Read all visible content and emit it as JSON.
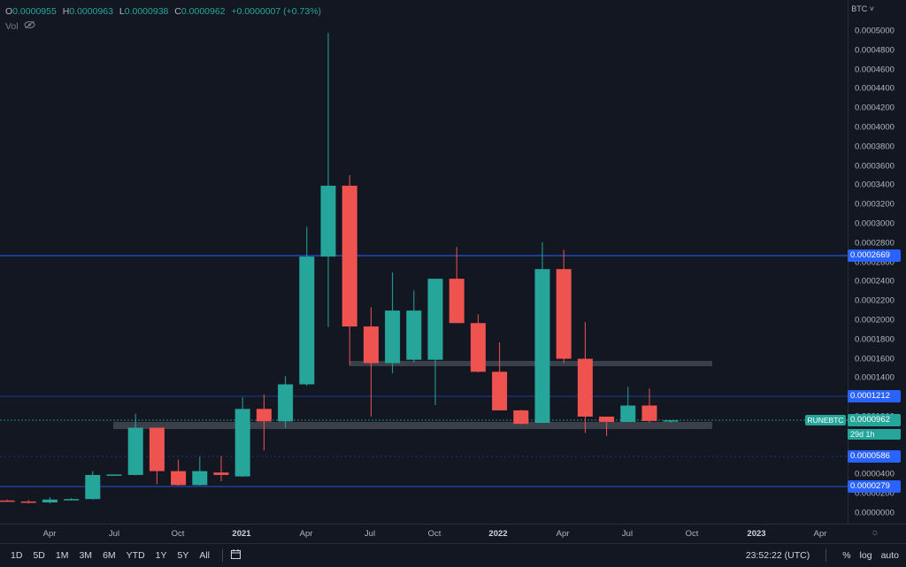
{
  "legend": {
    "o_label": "O",
    "o_value": "0.0000955",
    "h_label": "H",
    "h_value": "0.0000963",
    "l_label": "L",
    "l_value": "0.0000938",
    "c_label": "C",
    "c_value": "0.0000962",
    "change": "+0.0000007 (+0.73%)",
    "vol_label": "Vol"
  },
  "currency": "BTC",
  "y_ticks": [
    "0.0005000",
    "0.0004800",
    "0.0004600",
    "0.0004400",
    "0.0004200",
    "0.0004000",
    "0.0003800",
    "0.0003600",
    "0.0003400",
    "0.0003200",
    "0.0003000",
    "0.0002800",
    "0.0002600",
    "0.0002400",
    "0.0002200",
    "0.0002000",
    "0.0001800",
    "0.0001600",
    "0.0001400",
    "0.0001200",
    "0.0001000",
    "0.0000800",
    "0.0000600",
    "0.0000400",
    "0.0000200",
    "0.0000000"
  ],
  "x_ticks": [
    {
      "label": "Apr",
      "major": false
    },
    {
      "label": "Jul",
      "major": false
    },
    {
      "label": "Oct",
      "major": false
    },
    {
      "label": "2021",
      "major": true
    },
    {
      "label": "Apr",
      "major": false
    },
    {
      "label": "Jul",
      "major": false
    },
    {
      "label": "Oct",
      "major": false
    },
    {
      "label": "2022",
      "major": true
    },
    {
      "label": "Apr",
      "major": false
    },
    {
      "label": "Jul",
      "major": false
    },
    {
      "label": "Oct",
      "major": false
    },
    {
      "label": "2023",
      "major": true
    },
    {
      "label": "Apr",
      "major": false
    }
  ],
  "price_tags": {
    "level1": "0.0002669",
    "level2": "0.0001212",
    "current": "0.0000962",
    "level3": "0.0000586",
    "level4": "0.0000279"
  },
  "symbol": "RUNEBTC",
  "countdown": "29d 1h",
  "toolbar": {
    "timeframes": [
      "1D",
      "5D",
      "1M",
      "3M",
      "6M",
      "YTD",
      "1Y",
      "5Y",
      "All"
    ],
    "clock": "23:52:22 (UTC)",
    "percent": "%",
    "log": "log",
    "auto": "auto"
  },
  "colors": {
    "up": "#26a69a",
    "down": "#ef5350",
    "background": "#131722",
    "hline": "#2962ff"
  },
  "chart_data": {
    "type": "candlestick",
    "symbol": "RUNEBTC",
    "interval": "1M",
    "ylim": [
      0,
      0.0005
    ],
    "candles": [
      {
        "o": 1.3e-05,
        "h": 1.4e-05,
        "l": 1.2e-05,
        "c": 1.2e-05
      },
      {
        "o": 1.2e-05,
        "h": 1.35e-05,
        "l": 1e-05,
        "c": 1.1e-05
      },
      {
        "o": 1.1e-05,
        "h": 1.65e-05,
        "l": 1e-05,
        "c": 1.4e-05
      },
      {
        "o": 1.4e-05,
        "h": 1.55e-05,
        "l": 1.3e-05,
        "c": 1.45e-05
      },
      {
        "o": 1.45e-05,
        "h": 4.35e-05,
        "l": 1.4e-05,
        "c": 3.95e-05
      },
      {
        "o": 3.95e-05,
        "h": 4e-05,
        "l": 3.85e-05,
        "c": 4e-05
      },
      {
        "o": 3.95e-05,
        "h": 0.000103,
        "l": 3.9e-05,
        "c": 8.85e-05
      },
      {
        "o": 8.85e-05,
        "h": 8.8e-05,
        "l": 3e-05,
        "c": 4.35e-05
      },
      {
        "o": 4.35e-05,
        "h": 5.55e-05,
        "l": 2.85e-05,
        "c": 2.9e-05
      },
      {
        "o": 2.9e-05,
        "h": 5.85e-05,
        "l": 2.85e-05,
        "c": 4.35e-05
      },
      {
        "o": 4.2e-05,
        "h": 5.9e-05,
        "l": 3.3e-05,
        "c": 3.95e-05
      },
      {
        "o": 3.8e-05,
        "h": 0.00012,
        "l": 3.75e-05,
        "c": 0.000108
      },
      {
        "o": 0.000108,
        "h": 0.000123,
        "l": 6.5e-05,
        "c": 9.5e-05
      },
      {
        "o": 9.5e-05,
        "h": 0.000142,
        "l": 8.8e-05,
        "c": 0.0001335
      },
      {
        "o": 0.0001335,
        "h": 0.000297,
        "l": 0.000132,
        "c": 0.000266
      },
      {
        "o": 0.000266,
        "h": 0.000498,
        "l": 0.000193,
        "c": 0.0003395
      },
      {
        "o": 0.0003395,
        "h": 0.0003505,
        "l": 0.0001535,
        "c": 0.0001935
      },
      {
        "o": 0.0001935,
        "h": 0.0002135,
        "l": 0.0001,
        "c": 0.0001555
      },
      {
        "o": 0.0001555,
        "h": 0.0002495,
        "l": 0.000145,
        "c": 0.00021
      },
      {
        "o": 0.000159,
        "h": 0.000231,
        "l": 0.000156,
        "c": 0.00021
      },
      {
        "o": 0.000159,
        "h": 0.000243,
        "l": 0.000112,
        "c": 0.000243
      },
      {
        "o": 0.000243,
        "h": 0.000276,
        "l": 0.000199,
        "c": 0.000197
      },
      {
        "o": 0.000197,
        "h": 0.000206,
        "l": 0.000146,
        "c": 0.0001465
      },
      {
        "o": 0.0001465,
        "h": 0.000177,
        "l": 0.000109,
        "c": 0.0001065
      },
      {
        "o": 0.0001065,
        "h": 0.000107,
        "l": 9.2e-05,
        "c": 9.25e-05
      },
      {
        "o": 9.35e-05,
        "h": 0.000281,
        "l": 9.35e-05,
        "c": 0.000253
      },
      {
        "o": 0.000253,
        "h": 0.000273,
        "l": 0.0001555,
        "c": 0.00016
      },
      {
        "o": 0.00016,
        "h": 0.000198,
        "l": 8.3e-05,
        "c": 0.0001
      },
      {
        "o": 0.0001,
        "h": 0.0001,
        "l": 8e-05,
        "c": 9.45e-05
      },
      {
        "o": 9.45e-05,
        "h": 0.000131,
        "l": 9.45e-05,
        "c": 0.0001115
      },
      {
        "o": 0.0001115,
        "h": 0.000129,
        "l": 9.4e-05,
        "c": 9.55e-05
      },
      {
        "o": 9.55e-05,
        "h": 9.63e-05,
        "l": 9.38e-05,
        "c": 9.62e-05
      }
    ]
  }
}
